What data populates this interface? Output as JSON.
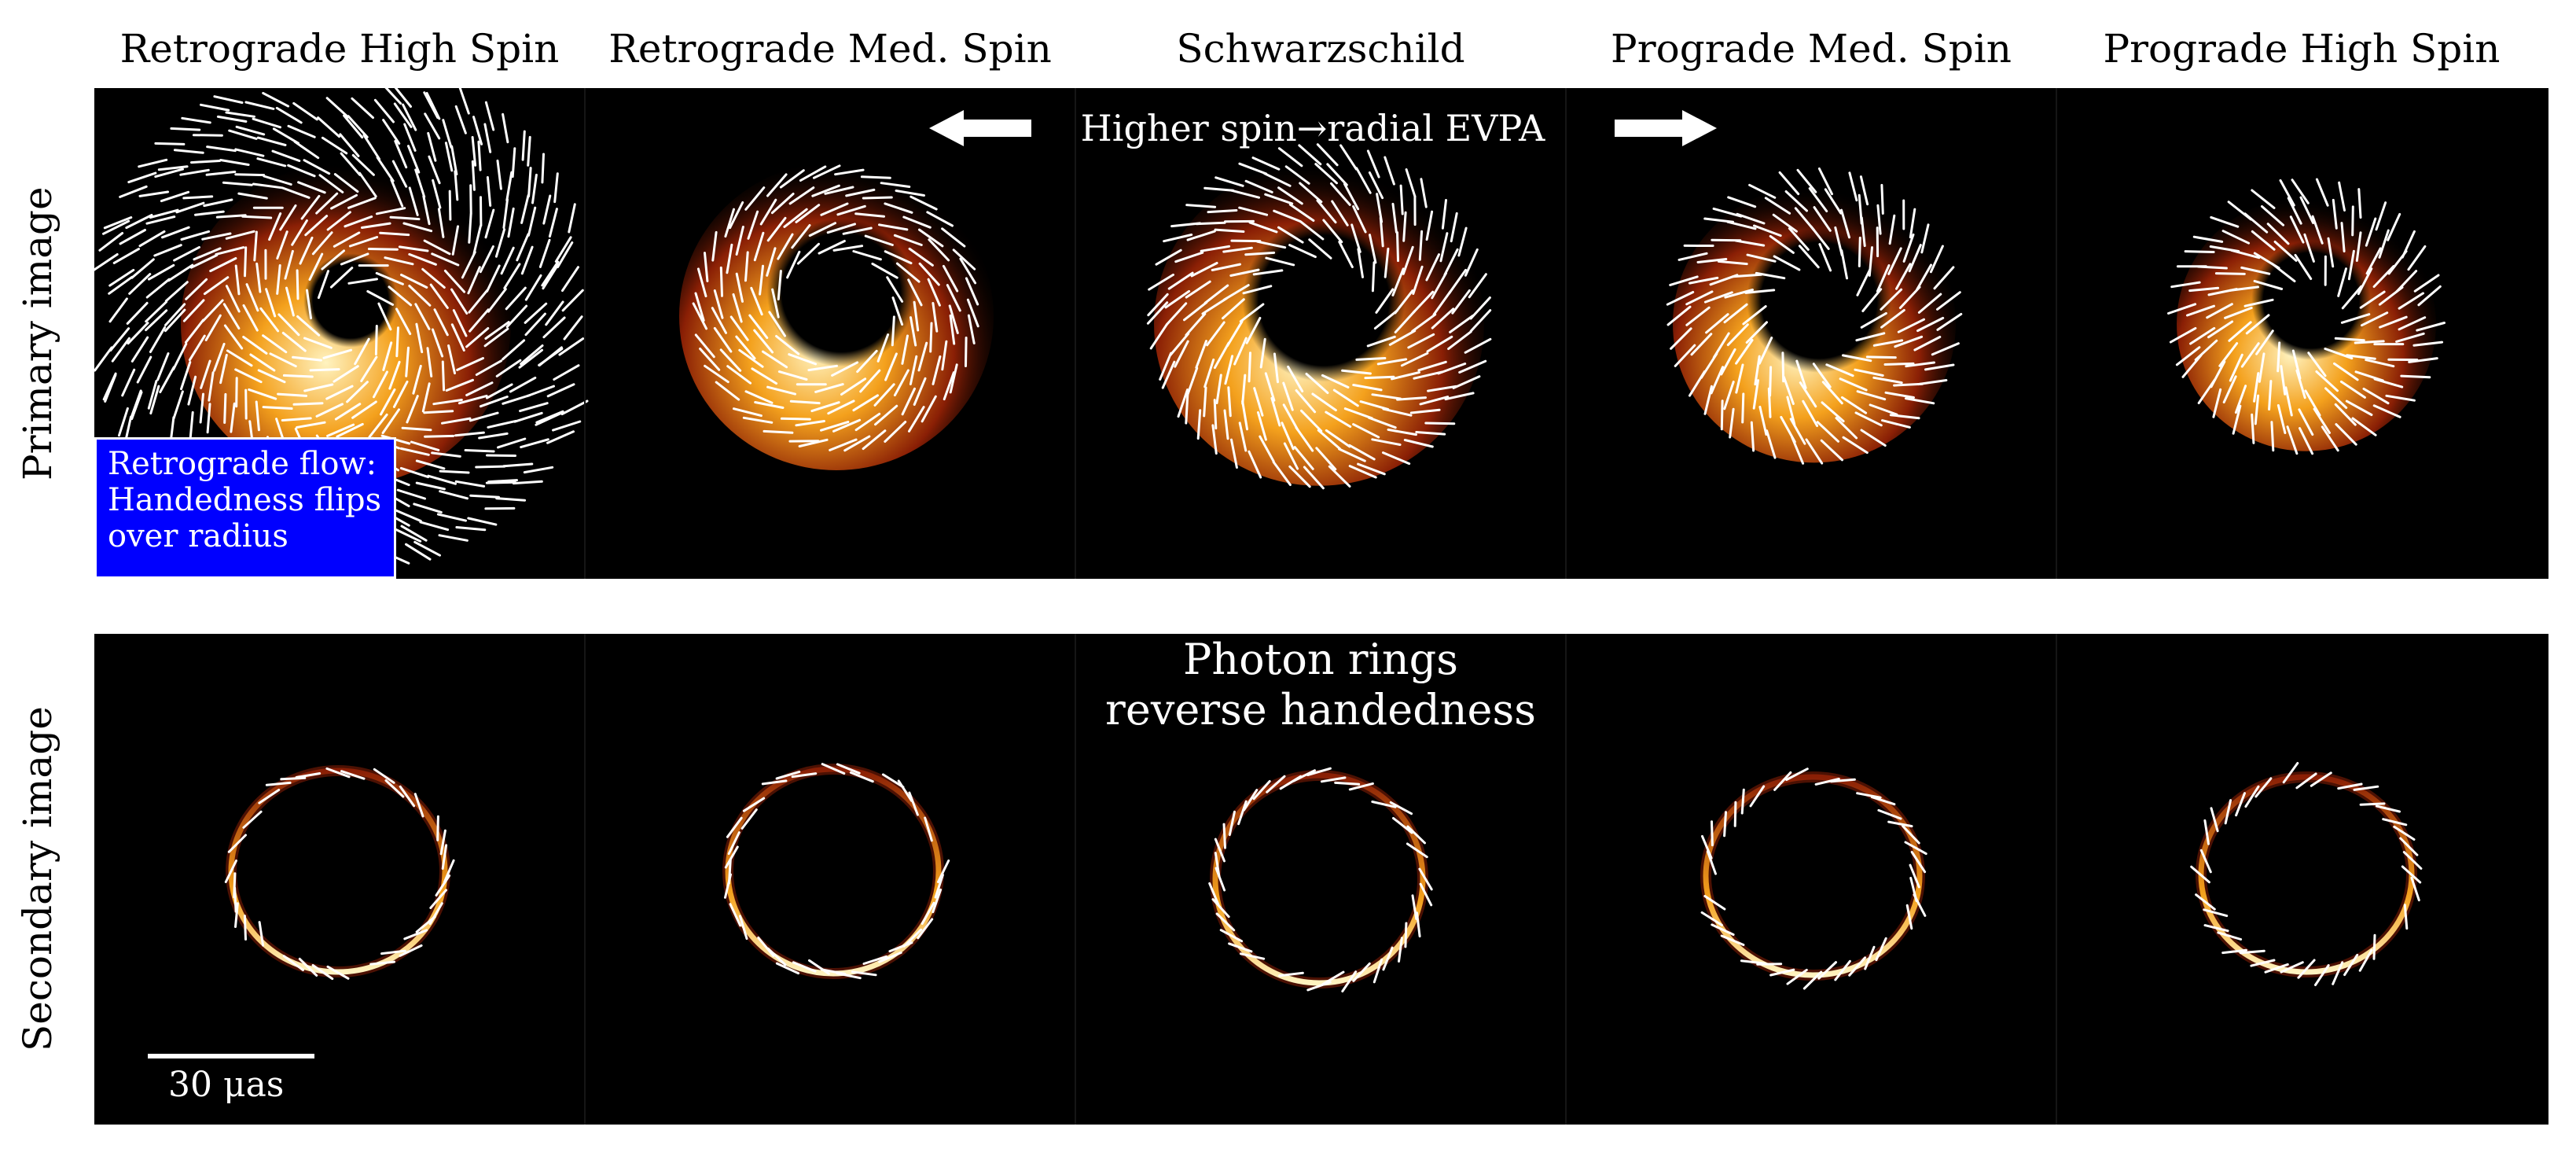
{
  "columns": [
    {
      "title": "Retrograde High Spin"
    },
    {
      "title": "Retrograde Med. Spin"
    },
    {
      "title": "Schwarzschild"
    },
    {
      "title": "Prograde Med. Spin"
    },
    {
      "title": "Prograde High Spin"
    }
  ],
  "rows": {
    "primary_label": "Primary image",
    "secondary_label": "Secondary image"
  },
  "annotations": {
    "spin_trend": "Higher spin→radial EVPA",
    "photon_rings_line1": "Photon rings",
    "photon_rings_line2": "reverse handedness",
    "retrograde_callout": [
      "Retrograde flow:",
      "Handedness flips",
      "over radius"
    ],
    "scale_bar_label": "30 μas"
  },
  "colors": {
    "background": "#000000",
    "emission_core": "#fff3c0",
    "emission_mid": "#f4a11d",
    "emission_edge": "#8a1f05",
    "ticks": "#ffffff",
    "callout_fill": "#0000ff"
  },
  "panels": {
    "primary": [
      {
        "model": "retrograde-high",
        "ring_radius_uas": 22,
        "spiral_pitch_deg": -30
      },
      {
        "model": "retrograde-med",
        "ring_radius_uas": 22,
        "spiral_pitch_deg": -20
      },
      {
        "model": "schwarzschild",
        "ring_radius_uas": 22,
        "spiral_pitch_deg": 45
      },
      {
        "model": "prograde-med",
        "ring_radius_uas": 20,
        "spiral_pitch_deg": 55
      },
      {
        "model": "prograde-high",
        "ring_radius_uas": 18,
        "spiral_pitch_deg": 65
      }
    ],
    "secondary": [
      {
        "model": "retrograde-high",
        "ring_radius_uas": 19
      },
      {
        "model": "retrograde-med",
        "ring_radius_uas": 19
      },
      {
        "model": "schwarzschild",
        "ring_radius_uas": 19
      },
      {
        "model": "prograde-med",
        "ring_radius_uas": 19
      },
      {
        "model": "prograde-high",
        "ring_radius_uas": 19
      }
    ]
  }
}
